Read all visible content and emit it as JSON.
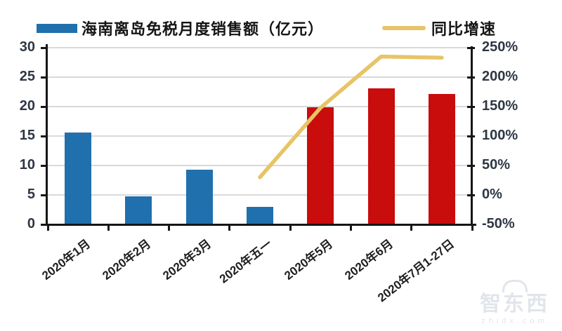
{
  "legend": {
    "bar_series_label": "海南离岛免税月度销售额（亿元）",
    "line_series_label": "同比增速"
  },
  "colors": {
    "bar_blue": "#2070ad",
    "bar_red": "#c90c0c",
    "line_yellow": "#e7c466",
    "gridline": "#d9d9d9",
    "axis": "#161616",
    "tick_label": "#2e3744",
    "x_label": "#1f1f1f",
    "watermark": "#97a5ba"
  },
  "chart_data": {
    "type": "bar",
    "subtype": "combo bar + line, dual y-axis",
    "categories": [
      "2020年1月",
      "2020年2月",
      "2020年3月",
      "2020年五一",
      "2020年5月",
      "2020年6月",
      "2020年7月1-27日"
    ],
    "series": [
      {
        "name": "海南离岛免税月度销售额（亿元）",
        "type": "bar",
        "axis": "left",
        "values": [
          15.6,
          4.8,
          9.3,
          3.0,
          19.9,
          23.1,
          22.2
        ],
        "bar_colors": [
          "#2070ad",
          "#2070ad",
          "#2070ad",
          "#2070ad",
          "#c90c0c",
          "#c90c0c",
          "#c90c0c"
        ]
      },
      {
        "name": "同比增速",
        "type": "line",
        "axis": "right",
        "values": [
          null,
          null,
          null,
          30,
          148,
          235,
          233
        ]
      }
    ],
    "left_axis": {
      "min": 0,
      "max": 30,
      "step": 5,
      "tick_labels": [
        "0",
        "5",
        "10",
        "15",
        "20",
        "25",
        "30"
      ]
    },
    "right_axis": {
      "min": -50,
      "max": 250,
      "step": 50,
      "tick_labels": [
        "-50%",
        "0%",
        "50%",
        "100%",
        "150%",
        "200%",
        "250%"
      ]
    },
    "grid": true,
    "legend_position": "top"
  },
  "watermark": {
    "name": "智东西",
    "domain": "zhidx.com"
  }
}
